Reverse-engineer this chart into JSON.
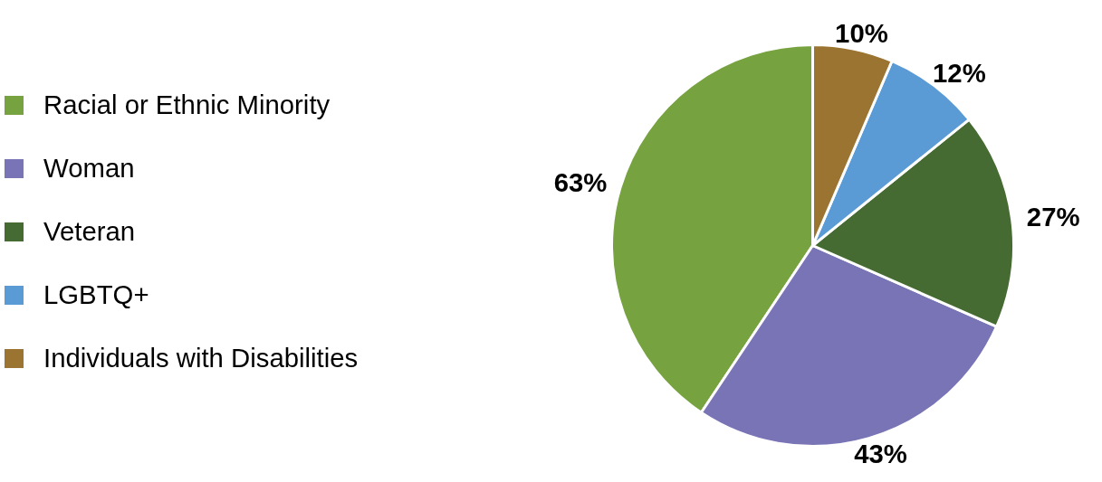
{
  "chart_data": {
    "type": "pie",
    "categories": [
      "Racial or Ethnic Minority",
      "Woman",
      "Veteran",
      "LGBTQ+",
      "Individuals with Disabilities"
    ],
    "values": [
      63,
      43,
      27,
      12,
      10
    ],
    "value_labels": [
      "63%",
      "43%",
      "27%",
      "12%",
      "10%"
    ],
    "colors": [
      "#76a240",
      "#7874b6",
      "#456b32",
      "#5b9bd5",
      "#9a7430"
    ],
    "legend": "left"
  }
}
